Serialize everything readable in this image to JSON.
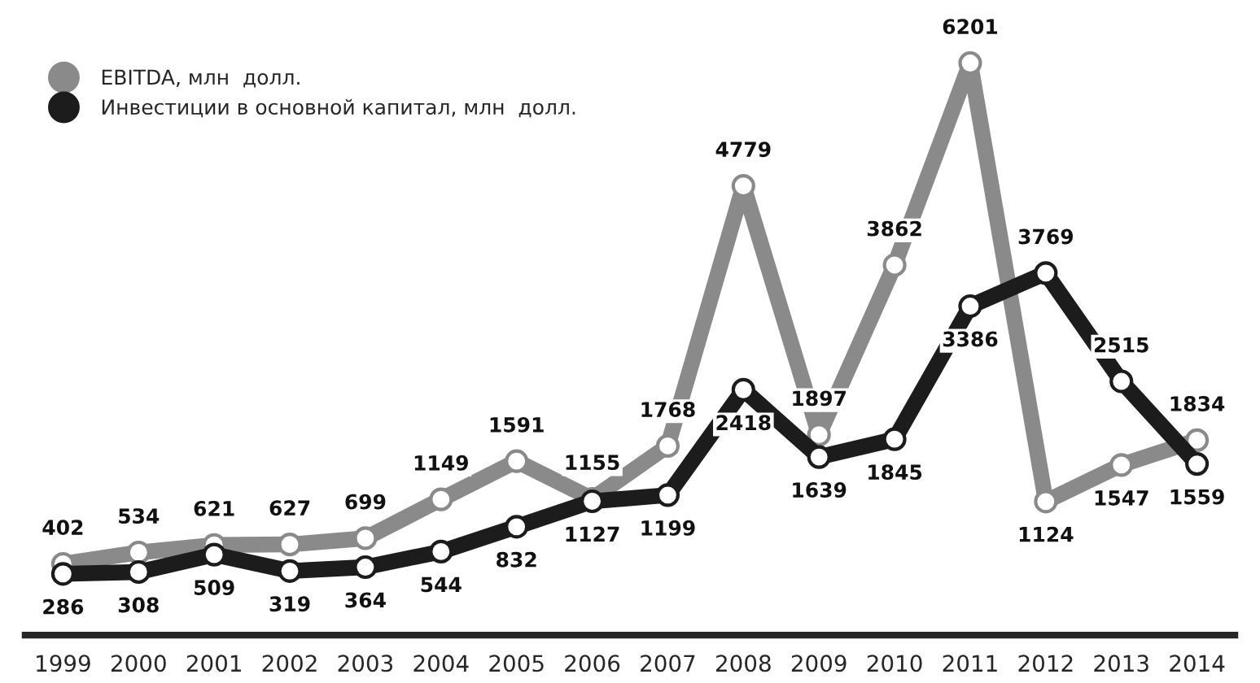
{
  "chart_data": {
    "type": "line",
    "categories": [
      "1999",
      "2000",
      "2001",
      "2002",
      "2003",
      "2004",
      "2005",
      "2006",
      "2007",
      "2008",
      "2009",
      "2010",
      "2011",
      "2012",
      "2013",
      "2014"
    ],
    "series": [
      {
        "name": "EBITDA, млн  долл.",
        "color": "#8a8a8a",
        "values": [
          402,
          534,
          621,
          627,
          699,
          1149,
          1591,
          1155,
          1768,
          4779,
          1897,
          3862,
          6201,
          1124,
          1547,
          1834
        ]
      },
      {
        "name": "Инвестиции в основной капитал, млн  долл.",
        "color": "#1c1c1c",
        "values": [
          286,
          308,
          509,
          319,
          364,
          544,
          832,
          1127,
          1199,
          2418,
          1639,
          1845,
          3386,
          3769,
          2515,
          1559
        ]
      }
    ],
    "data_labels": true,
    "legend": "top left",
    "marker": "circle",
    "line_style": "solid",
    "grid": false
  }
}
